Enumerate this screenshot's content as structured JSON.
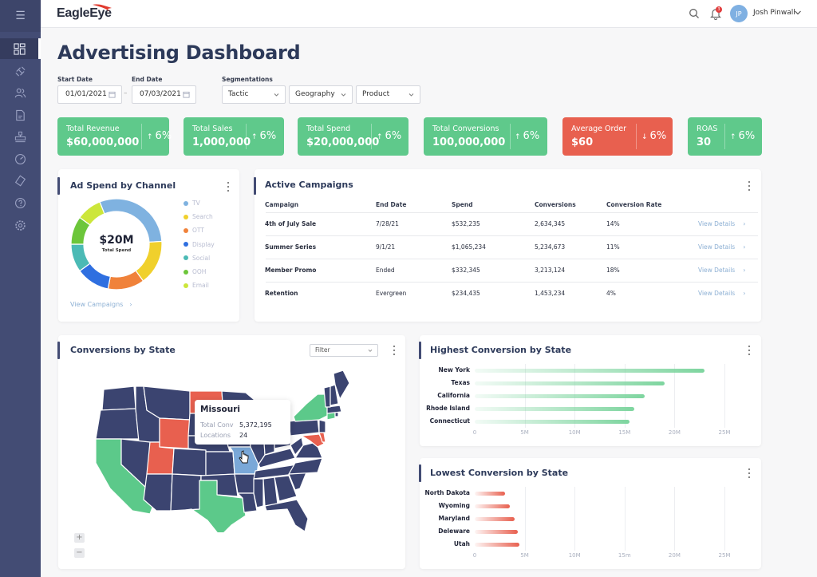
{
  "app": {
    "logo": "EagleEye",
    "user": {
      "initials": "JP",
      "name": "Josh Pinwall",
      "notifications": "3"
    }
  },
  "sidebar": {
    "items": [
      {
        "icon": "dashboard-icon",
        "active": true
      },
      {
        "icon": "integrations-icon"
      },
      {
        "icon": "users-icon"
      },
      {
        "icon": "document-icon"
      },
      {
        "icon": "hierarchy-icon"
      },
      {
        "icon": "speedometer-icon"
      },
      {
        "icon": "tag-icon"
      },
      {
        "icon": "help-icon"
      },
      {
        "icon": "settings-icon"
      }
    ]
  },
  "page": {
    "title": "Advertising Dashboard"
  },
  "filters": {
    "start_label": "Start Date",
    "start_value": "01/01/2021",
    "end_label": "End Date",
    "end_value": "07/03/2021",
    "seg_label": "Segmentations",
    "segments": [
      "Tactic",
      "Geography",
      "Product"
    ]
  },
  "kpis": [
    {
      "label": "Total Revenue",
      "value": "$60,000,000",
      "change": "6%",
      "dir": "up"
    },
    {
      "label": "Total Sales",
      "value": "1,000,000",
      "change": "6%",
      "dir": "up"
    },
    {
      "label": "Total Spend",
      "value": "$20,000,000",
      "change": "6%",
      "dir": "up"
    },
    {
      "label": "Total Conversions",
      "value": "100,000,000",
      "change": "6%",
      "dir": "up"
    },
    {
      "label": "Average Order",
      "value": "$60",
      "change": "6%",
      "dir": "down"
    },
    {
      "label": "ROAS",
      "value": "30",
      "change": "6%",
      "dir": "up"
    }
  ],
  "arrows": {
    "up": "↑",
    "down": "↓"
  },
  "ad_spend": {
    "title": "Ad Spend by Channel",
    "center_value": "$20M",
    "center_label": "Total Spend",
    "link": "View Campaigns"
  },
  "campaigns": {
    "title": "Active Campaigns",
    "headers": [
      "Campaign",
      "End Date",
      "Spend",
      "Conversions",
      "Conversion Rate"
    ],
    "rows": [
      {
        "name": "4th of July Sale",
        "end": "7/28/21",
        "spend": "$532,235",
        "conv": "2,634,345",
        "rate": "14%",
        "link": "View Details"
      },
      {
        "name": "Summer Series",
        "end": "9/1/21",
        "spend": "$1,065,234",
        "conv": "5,234,673",
        "rate": "11%",
        "link": "View Details"
      },
      {
        "name": "Member Promo",
        "end": "Ended",
        "spend": "$332,345",
        "conv": "3,213,124",
        "rate": "18%",
        "link": "View Details"
      },
      {
        "name": "Retention",
        "end": "Evergreen",
        "spend": "$234,435",
        "conv": "1,453,234",
        "rate": "4%",
        "link": "View Details"
      }
    ]
  },
  "map": {
    "title": "Conversions by State",
    "filter": "Filter",
    "tooltip": {
      "state": "Missouri",
      "conv_label": "Total Conv",
      "conv_value": "5,372,195",
      "loc_label": "Locations",
      "loc_value": "24"
    },
    "zoom_in": "+",
    "zoom_out": "−",
    "colors": {
      "default": "#3b4470",
      "high": "#5cc98a",
      "low": "#e8604f",
      "hover": "#7aa8d8"
    }
  },
  "chart_data": [
    {
      "type": "pie",
      "title": "Ad Spend by Channel",
      "categories": [
        "TV",
        "Search",
        "OTT",
        "Display",
        "Social",
        "OOH",
        "Email"
      ],
      "values": [
        30,
        16,
        13,
        12,
        10,
        10,
        9
      ],
      "colors": [
        "#7fb2e0",
        "#f0d02c",
        "#f0823a",
        "#2f6fe0",
        "#4bbab5",
        "#6cc63a",
        "#cce63a"
      ]
    },
    {
      "type": "bar",
      "title": "Highest Conversion by State",
      "categories": [
        "New York",
        "Texas",
        "California",
        "Rhode Island",
        "Connecticut"
      ],
      "values": [
        23,
        19,
        17,
        16,
        15.5
      ],
      "xlim": [
        0,
        25
      ],
      "ticks": [
        "0",
        "5M",
        "10M",
        "15M",
        "20M",
        "25M"
      ],
      "unit": "M",
      "color": "#5cc98a"
    },
    {
      "type": "bar",
      "title": "Lowest Conversion by State",
      "categories": [
        "North Dakota",
        "Wyoming",
        "Maryland",
        "Deleware",
        "Utah"
      ],
      "values": [
        3.0,
        3.5,
        4.0,
        4.3,
        4.5
      ],
      "xlim": [
        0,
        25
      ],
      "ticks": [
        "0",
        "5M",
        "10M",
        "15m",
        "20M",
        "25M"
      ],
      "unit": "M",
      "color": "#e8604f"
    }
  ]
}
